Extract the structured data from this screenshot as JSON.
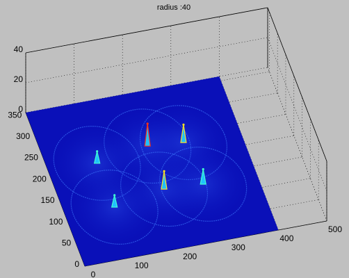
{
  "chart_data": {
    "type": "surface3d",
    "title": "radius :40",
    "x": [
      210,
      282,
      100,
      210,
      289,
      101
    ],
    "y": [
      237,
      230,
      220,
      136,
      131,
      117
    ],
    "z": [
      15,
      12,
      8,
      12,
      10,
      8
    ],
    "xlim": [
      0,
      500
    ],
    "ylim": [
      0,
      360
    ],
    "zlim": [
      0,
      40
    ],
    "xticks": [
      0,
      100,
      200,
      300,
      400,
      500
    ],
    "yticks": [
      0,
      50,
      100,
      150,
      200,
      250,
      300,
      350
    ],
    "zticks": [
      0,
      20,
      40
    ],
    "grid": true
  }
}
